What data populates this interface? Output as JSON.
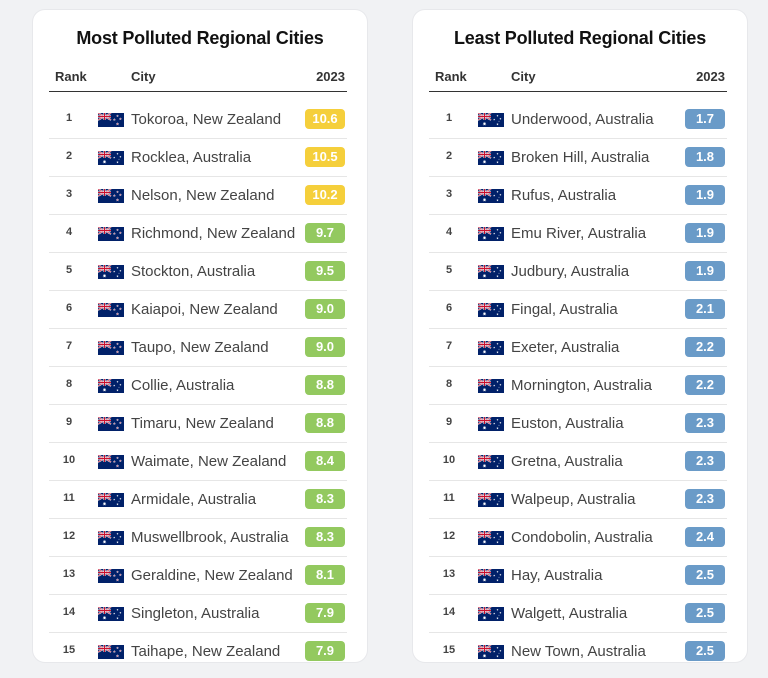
{
  "colors": {
    "yellow": "#f5cf3b",
    "green": "#93c95f",
    "blue": "#6a9bc8"
  },
  "tables": [
    {
      "title": "Most Polluted Regional Cities",
      "headers": {
        "rank": "Rank",
        "city": "City",
        "year": "2023"
      },
      "rows": [
        {
          "rank": "1",
          "flag": "nz",
          "city": "Tokoroa, New Zealand",
          "value": "10.6",
          "color": "yellow"
        },
        {
          "rank": "2",
          "flag": "au",
          "city": "Rocklea, Australia",
          "value": "10.5",
          "color": "yellow"
        },
        {
          "rank": "3",
          "flag": "nz",
          "city": "Nelson, New Zealand",
          "value": "10.2",
          "color": "yellow"
        },
        {
          "rank": "4",
          "flag": "nz",
          "city": "Richmond, New Zealand",
          "value": "9.7",
          "color": "green"
        },
        {
          "rank": "5",
          "flag": "au",
          "city": "Stockton, Australia",
          "value": "9.5",
          "color": "green"
        },
        {
          "rank": "6",
          "flag": "nz",
          "city": "Kaiapoi, New Zealand",
          "value": "9.0",
          "color": "green"
        },
        {
          "rank": "7",
          "flag": "nz",
          "city": "Taupo, New Zealand",
          "value": "9.0",
          "color": "green"
        },
        {
          "rank": "8",
          "flag": "au",
          "city": "Collie, Australia",
          "value": "8.8",
          "color": "green"
        },
        {
          "rank": "9",
          "flag": "nz",
          "city": "Timaru, New Zealand",
          "value": "8.8",
          "color": "green"
        },
        {
          "rank": "10",
          "flag": "nz",
          "city": "Waimate, New Zealand",
          "value": "8.4",
          "color": "green"
        },
        {
          "rank": "11",
          "flag": "au",
          "city": "Armidale, Australia",
          "value": "8.3",
          "color": "green"
        },
        {
          "rank": "12",
          "flag": "au",
          "city": "Muswellbrook, Australia",
          "value": "8.3",
          "color": "green"
        },
        {
          "rank": "13",
          "flag": "nz",
          "city": "Geraldine, New Zealand",
          "value": "8.1",
          "color": "green"
        },
        {
          "rank": "14",
          "flag": "au",
          "city": "Singleton, Australia",
          "value": "7.9",
          "color": "green"
        },
        {
          "rank": "15",
          "flag": "nz",
          "city": "Taihape, New Zealand",
          "value": "7.9",
          "color": "green"
        }
      ]
    },
    {
      "title": "Least Polluted Regional Cities",
      "headers": {
        "rank": "Rank",
        "city": "City",
        "year": "2023"
      },
      "rows": [
        {
          "rank": "1",
          "flag": "au",
          "city": "Underwood, Australia",
          "value": "1.7",
          "color": "blue"
        },
        {
          "rank": "2",
          "flag": "au",
          "city": "Broken Hill, Australia",
          "value": "1.8",
          "color": "blue"
        },
        {
          "rank": "3",
          "flag": "au",
          "city": "Rufus, Australia",
          "value": "1.9",
          "color": "blue"
        },
        {
          "rank": "4",
          "flag": "au",
          "city": "Emu River, Australia",
          "value": "1.9",
          "color": "blue"
        },
        {
          "rank": "5",
          "flag": "au",
          "city": "Judbury, Australia",
          "value": "1.9",
          "color": "blue"
        },
        {
          "rank": "6",
          "flag": "au",
          "city": "Fingal, Australia",
          "value": "2.1",
          "color": "blue"
        },
        {
          "rank": "7",
          "flag": "au",
          "city": "Exeter, Australia",
          "value": "2.2",
          "color": "blue"
        },
        {
          "rank": "8",
          "flag": "au",
          "city": "Mornington, Australia",
          "value": "2.2",
          "color": "blue"
        },
        {
          "rank": "9",
          "flag": "au",
          "city": "Euston, Australia",
          "value": "2.3",
          "color": "blue"
        },
        {
          "rank": "10",
          "flag": "au",
          "city": "Gretna, Australia",
          "value": "2.3",
          "color": "blue"
        },
        {
          "rank": "11",
          "flag": "au",
          "city": "Walpeup, Australia",
          "value": "2.3",
          "color": "blue"
        },
        {
          "rank": "12",
          "flag": "au",
          "city": "Condobolin, Australia",
          "value": "2.4",
          "color": "blue"
        },
        {
          "rank": "13",
          "flag": "au",
          "city": "Hay, Australia",
          "value": "2.5",
          "color": "blue"
        },
        {
          "rank": "14",
          "flag": "au",
          "city": "Walgett, Australia",
          "value": "2.5",
          "color": "blue"
        },
        {
          "rank": "15",
          "flag": "au",
          "city": "New Town, Australia",
          "value": "2.5",
          "color": "blue"
        }
      ]
    }
  ]
}
